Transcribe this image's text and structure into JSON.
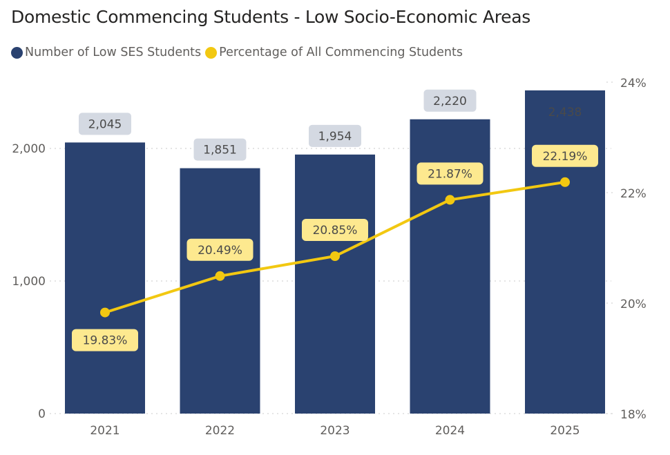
{
  "chart_data": {
    "type": "bar+line",
    "title": "Domestic Commencing Students - Low Socio-Economic Areas",
    "categories": [
      "2021",
      "2022",
      "2023",
      "2024",
      "2025"
    ],
    "series": [
      {
        "name": "Number of Low SES Students",
        "type": "bar",
        "axis": "left",
        "color": "#2a4270",
        "values": [
          2045,
          1851,
          1954,
          2220,
          2438
        ],
        "labels": [
          "2,045",
          "1,851",
          "1,954",
          "2,220",
          "2,438"
        ]
      },
      {
        "name": "Percentage of All Commencing Students",
        "type": "line",
        "axis": "right",
        "color": "#f2c811",
        "values": [
          19.83,
          20.49,
          20.85,
          21.87,
          22.19
        ],
        "labels": [
          "19.83%",
          "20.49%",
          "20.85%",
          "21.87%",
          "22.19%"
        ]
      }
    ],
    "left_axis": {
      "range": [
        0,
        2500
      ],
      "ticks": [
        0,
        1000,
        2000
      ],
      "tick_labels": [
        "0",
        "1,000",
        "2,000"
      ]
    },
    "right_axis": {
      "range": [
        18,
        24
      ],
      "ticks": [
        18,
        20,
        22,
        24
      ],
      "tick_labels": [
        "18%",
        "20%",
        "22%",
        "24%"
      ]
    },
    "grid": true,
    "legend_position": "top-left"
  }
}
